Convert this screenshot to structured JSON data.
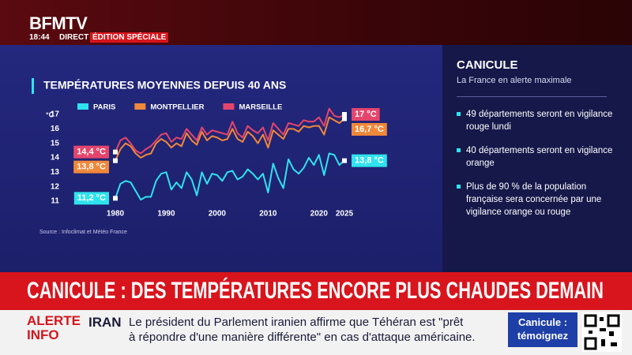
{
  "header": {
    "logo": "BFMTV",
    "time": "18:44",
    "live": "DIRECT",
    "edition": "ÉDITION SPÉCIALE"
  },
  "chart_data": {
    "type": "line",
    "title": "TEMPÉRATURES MOYENNES DEPUIS 40 ANS",
    "source": "Source : Infoclimat et Météo France",
    "y_label": "°C",
    "x": [
      1980,
      1981,
      1982,
      1983,
      1984,
      1985,
      1986,
      1987,
      1988,
      1989,
      1990,
      1991,
      1992,
      1993,
      1994,
      1995,
      1996,
      1997,
      1998,
      1999,
      2000,
      2001,
      2002,
      2003,
      2004,
      2005,
      2006,
      2007,
      2008,
      2009,
      2010,
      2011,
      2012,
      2013,
      2014,
      2015,
      2016,
      2017,
      2018,
      2019,
      2020,
      2021,
      2022,
      2023,
      2024,
      2025
    ],
    "series": [
      {
        "name": "PARIS",
        "color": "#2fe3ee",
        "values": [
          11.2,
          12.2,
          12.4,
          12.3,
          11.7,
          11.1,
          11.3,
          11.3,
          12.4,
          12.9,
          13.0,
          11.8,
          12.3,
          11.9,
          13.0,
          12.5,
          11.4,
          13.0,
          12.2,
          12.9,
          12.8,
          12.4,
          13.0,
          13.1,
          12.5,
          12.7,
          13.2,
          12.9,
          12.5,
          12.9,
          11.6,
          13.6,
          12.6,
          11.9,
          13.9,
          13.2,
          12.9,
          13.3,
          14.0,
          13.5,
          14.2,
          12.8,
          14.3,
          14.2,
          13.5,
          13.8
        ],
        "value_labels": [
          "11,2 °C",
          null,
          null,
          null,
          null,
          null,
          null,
          null,
          null,
          null,
          null,
          null,
          null,
          null,
          null,
          null,
          null,
          null,
          null,
          null,
          null,
          null,
          null,
          null,
          null,
          null,
          null,
          null,
          null,
          null,
          null,
          null,
          null,
          null,
          null,
          null,
          null,
          null,
          null,
          null,
          null,
          null,
          null,
          null,
          null,
          "13,8 °C"
        ]
      },
      {
        "name": "MONTPELLIER",
        "color": "#f0883a",
        "values": [
          13.8,
          14.6,
          15.0,
          14.8,
          14.3,
          14.0,
          14.2,
          14.3,
          15.0,
          15.3,
          15.1,
          14.7,
          15.0,
          14.8,
          15.7,
          15.2,
          14.9,
          15.8,
          15.2,
          15.5,
          15.4,
          15.2,
          15.3,
          16.0,
          15.3,
          15.1,
          15.8,
          15.5,
          15.0,
          15.6,
          14.7,
          15.9,
          15.6,
          15.3,
          16.0,
          16.0,
          15.8,
          16.2,
          16.1,
          16.2,
          16.2,
          15.6,
          16.8,
          16.6,
          16.4,
          16.7
        ],
        "value_labels": [
          "13,8 °C",
          null,
          null,
          null,
          null,
          null,
          null,
          null,
          null,
          null,
          null,
          null,
          null,
          null,
          null,
          null,
          null,
          null,
          null,
          null,
          null,
          null,
          null,
          null,
          null,
          null,
          null,
          null,
          null,
          null,
          null,
          null,
          null,
          null,
          null,
          null,
          null,
          null,
          null,
          null,
          null,
          null,
          null,
          null,
          null,
          "16,7 °C"
        ]
      },
      {
        "name": "MARSEILLE",
        "color": "#e5456c",
        "values": [
          14.4,
          15.2,
          15.4,
          15.0,
          14.5,
          14.3,
          14.6,
          14.8,
          15.2,
          15.6,
          15.7,
          15.1,
          15.4,
          15.3,
          16.0,
          15.6,
          15.2,
          16.1,
          15.6,
          15.9,
          15.8,
          15.7,
          15.6,
          16.5,
          15.7,
          15.4,
          16.2,
          15.9,
          15.7,
          16.1,
          15.2,
          16.4,
          16.0,
          15.6,
          16.4,
          16.3,
          16.2,
          16.6,
          16.5,
          16.5,
          16.8,
          16.2,
          17.4,
          16.9,
          16.8,
          17.0
        ],
        "value_labels": [
          "14,4 °C",
          null,
          null,
          null,
          null,
          null,
          null,
          null,
          null,
          null,
          null,
          null,
          null,
          null,
          null,
          null,
          null,
          null,
          null,
          null,
          null,
          null,
          null,
          null,
          null,
          null,
          null,
          null,
          null,
          null,
          null,
          null,
          null,
          null,
          null,
          null,
          null,
          null,
          null,
          null,
          null,
          null,
          null,
          null,
          null,
          "17 °C"
        ]
      }
    ],
    "xlim": [
      1980,
      2025
    ],
    "ylim": [
      11,
      17
    ],
    "xticks": [
      1980,
      1990,
      2000,
      2010,
      2020,
      2025
    ],
    "yticks": [
      11,
      12,
      13,
      14,
      15,
      16,
      17
    ],
    "grid": false,
    "legend": "top"
  },
  "side_panel": {
    "title": "CANICULE",
    "subtitle": "La France en alerte maximale",
    "bullets": [
      "49 départements seront en vigilance rouge lundi",
      "40 départements seront en vigilance orange",
      "Plus de 90 % de la population française sera concernée par une vigilance orange ou rouge"
    ]
  },
  "banner": "CANICULE : DES TEMPÉRATURES ENCORE PLUS CHAUDES DEMAIN",
  "ticker": {
    "label": [
      "ALERTE",
      "INFO"
    ],
    "topic": "IRAN",
    "lines": [
      "Le président du Parlement iranien affirme que Téhéran est \"prêt",
      "à répondre d'une manière différente\" en cas d'attaque américaine."
    ]
  },
  "cta": {
    "title": "Canicule :",
    "subtitle": "témoignez"
  }
}
